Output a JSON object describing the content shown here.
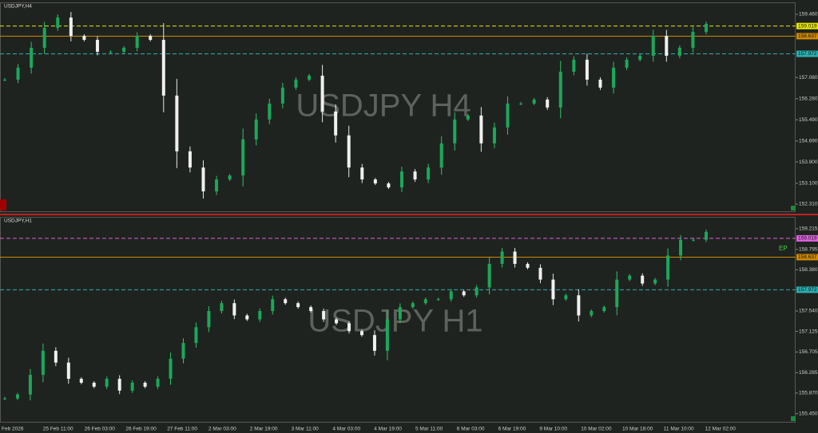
{
  "panels": [
    {
      "title": "USDJPY,H4",
      "watermark": "USDJPY H4",
      "ylim": [
        152.13,
        159.88
      ],
      "yticks": [
        {
          "value": 159.46,
          "label": "159.460"
        },
        {
          "value": 157.08,
          "label": "157.080"
        },
        {
          "value": 156.28,
          "label": "156.280"
        },
        {
          "value": 155.49,
          "label": "155.490"
        },
        {
          "value": 154.69,
          "label": "154.690"
        },
        {
          "value": 153.9,
          "label": "153.900"
        },
        {
          "value": 153.1,
          "label": "153.100"
        },
        {
          "value": 152.31,
          "label": "152.310"
        }
      ],
      "levels": [
        {
          "value": 159.019,
          "color": "#e6e600"
        },
        {
          "value": 158.637,
          "color": "#d08a00"
        },
        {
          "value": 157.972,
          "color": "#2ab0b0"
        }
      ],
      "closes": [
        157.0,
        157.45,
        158.2,
        158.95,
        159.34,
        158.65,
        158.5,
        158.05,
        158.05,
        158.2,
        158.65,
        158.5,
        156.4,
        154.3,
        153.69,
        152.79,
        153.24,
        153.39,
        154.75,
        155.5,
        156.1,
        156.7,
        157.0,
        157.15,
        155.8,
        154.9,
        153.69,
        153.24,
        153.09,
        152.94,
        153.54,
        153.24,
        153.69,
        154.6,
        155.5,
        155.65,
        154.6,
        155.2,
        156.1,
        156.1,
        156.25,
        155.95,
        157.3,
        157.75,
        157.0,
        156.7,
        157.45,
        157.75,
        157.9,
        158.65,
        157.9,
        158.2,
        158.8,
        159.1
      ]
    },
    {
      "title": "USDJPY,H1",
      "watermark": "USDJPY H1",
      "ylim": [
        155.3,
        159.44
      ],
      "yticks": [
        159.215,
        158.795,
        {
          "value": 158.38,
          "label": "158.380"
        },
        {
          "value": 157.54,
          "label": "157.540"
        },
        157.125,
        156.705,
        156.285,
        {
          "value": 155.87,
          "label": "155.870"
        },
        {
          "value": 155.45,
          "label": "155.450"
        }
      ],
      "levels": [
        {
          "value": 159.019,
          "color": "#e060e0"
        },
        {
          "value": 158.637,
          "color": "#d08a00"
        },
        {
          "value": 157.972,
          "color": "#2ab0b0"
        }
      ],
      "closes": [
        155.76,
        155.84,
        156.24,
        156.73,
        156.49,
        156.16,
        156.08,
        156.0,
        156.16,
        155.92,
        156.08,
        156.0,
        156.16,
        156.57,
        156.89,
        157.21,
        157.54,
        157.7,
        157.45,
        157.37,
        157.54,
        157.78,
        157.7,
        157.62,
        157.54,
        157.37,
        157.29,
        157.13,
        157.05,
        156.73,
        157.37,
        157.62,
        157.7,
        157.78,
        157.78,
        157.94,
        157.86,
        158.02,
        158.5,
        158.75,
        158.5,
        158.42,
        158.18,
        157.78,
        157.86,
        157.45,
        157.54,
        157.62,
        158.18,
        158.26,
        158.1,
        158.18,
        158.67,
        158.99,
        158.99,
        159.15
      ]
    }
  ],
  "time_labels": [
    "Feb 2026",
    "25 Feb 11:00",
    "26 Feb 03:00",
    "26 Feb 19:00",
    "27 Feb 11:00",
    "2 Mar 03:00",
    "2 Mar 19:00",
    "3 Mar 11:00",
    "4 Mar 03:00",
    "4 Mar 19:00",
    "5 Mar 11:00",
    "6 Mar 03:00",
    "6 Mar 19:00",
    "9 Mar 10:00",
    "10 Mar 02:00",
    "10 Mar 18:00",
    "11 Mar 10:00",
    "12 Mar 02:00"
  ],
  "annotation": "EP"
}
